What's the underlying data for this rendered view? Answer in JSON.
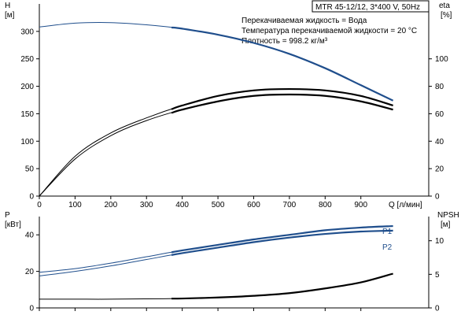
{
  "chart_data": [
    {
      "type": "line",
      "panel": "head-efficiency",
      "title_box": "MTR 45-12/12, 3*400 V, 50Hz",
      "annotations": [
        "Перекачиваемая жидкость = Вода",
        "Температура перекачиваемой жидкости = 20 °C",
        "Плотность = 998.2 кг/м³"
      ],
      "xlabel": "Q [л/мин]",
      "x_tick_labels": [
        "0",
        "100",
        "200",
        "300",
        "400",
        "500",
        "600",
        "700",
        "800",
        "900"
      ],
      "x_ticks": [
        0,
        100,
        200,
        300,
        400,
        500,
        600,
        700,
        800,
        900
      ],
      "xlim": [
        0,
        1090
      ],
      "y_left": {
        "label_line1": "H",
        "label_line2": "[м]",
        "ylim": [
          0,
          350
        ],
        "ticks": [
          0,
          50,
          100,
          150,
          200,
          250,
          300
        ],
        "tick_labels": [
          "0",
          "50",
          "100",
          "150",
          "200",
          "250",
          "300"
        ]
      },
      "y_right": {
        "label_line1": "eta",
        "label_line2": "[%]",
        "ylim": [
          0,
          140
        ],
        "ticks": [
          0,
          20,
          40,
          60,
          80,
          100
        ],
        "tick_labels": [
          "0",
          "20",
          "40",
          "60",
          "80",
          "100"
        ]
      },
      "series": [
        {
          "axis": "left",
          "color": "#1f4e8c",
          "x": [
            0,
            100,
            200,
            300,
            400,
            500,
            600,
            700,
            800,
            900,
            990
          ],
          "y": [
            308,
            315,
            316,
            312,
            305,
            294,
            279,
            259,
            233,
            202,
            174
          ],
          "highlight_from_x": 370
        },
        {
          "axis": "right",
          "color": "#000000",
          "x": [
            0,
            100,
            200,
            300,
            400,
            500,
            600,
            700,
            800,
            900,
            990
          ],
          "y": [
            0,
            29,
            46,
            57,
            66,
            73,
            77,
            78,
            77,
            73,
            66
          ],
          "highlight_from_x": 370
        },
        {
          "axis": "right",
          "color": "#000000",
          "x": [
            0,
            100,
            200,
            300,
            400,
            500,
            600,
            700,
            800,
            900,
            990
          ],
          "y": [
            0,
            27,
            44,
            55,
            63,
            69,
            73,
            74,
            73,
            69,
            63
          ],
          "highlight_from_x": 370
        }
      ]
    },
    {
      "type": "line",
      "panel": "power-npsh",
      "x_ticks": [
        0,
        100,
        200,
        300,
        400,
        500,
        600,
        700,
        800,
        900
      ],
      "xlim": [
        0,
        1090
      ],
      "y_left": {
        "label_line1": "P",
        "label_line2": "[кВт]",
        "ylim": [
          0,
          50
        ],
        "ticks": [
          0,
          20,
          40
        ],
        "tick_labels": [
          "0",
          "20",
          "40"
        ]
      },
      "y_right": {
        "label_line1": "NPSH",
        "label_line2": "[м]",
        "ylim": [
          0,
          13.6
        ],
        "ticks": [
          0,
          5,
          10
        ],
        "tick_labels": [
          "0",
          "5",
          "10"
        ]
      },
      "series": [
        {
          "name": "P1",
          "axis": "left",
          "color": "#1f4e8c",
          "x": [
            0,
            100,
            200,
            300,
            400,
            500,
            600,
            700,
            800,
            900,
            990
          ],
          "y": [
            19.5,
            21.5,
            24.5,
            28,
            31.5,
            34.5,
            37.5,
            40,
            42.5,
            44,
            44.8
          ],
          "highlight_from_x": 370
        },
        {
          "name": "P2",
          "axis": "left",
          "color": "#1f4e8c",
          "x": [
            0,
            100,
            200,
            300,
            400,
            500,
            600,
            700,
            800,
            900,
            990
          ],
          "y": [
            17.5,
            20,
            23,
            26.5,
            30,
            33,
            36,
            38.5,
            40.5,
            41.8,
            42.3
          ],
          "highlight_from_x": 370
        },
        {
          "axis": "right",
          "color": "#000000",
          "x": [
            0,
            100,
            200,
            300,
            400,
            500,
            600,
            700,
            800,
            900,
            990
          ],
          "y": [
            1.3,
            1.3,
            1.3,
            1.35,
            1.4,
            1.55,
            1.8,
            2.2,
            2.9,
            3.8,
            5.1
          ],
          "highlight_from_x": 370
        }
      ]
    }
  ]
}
